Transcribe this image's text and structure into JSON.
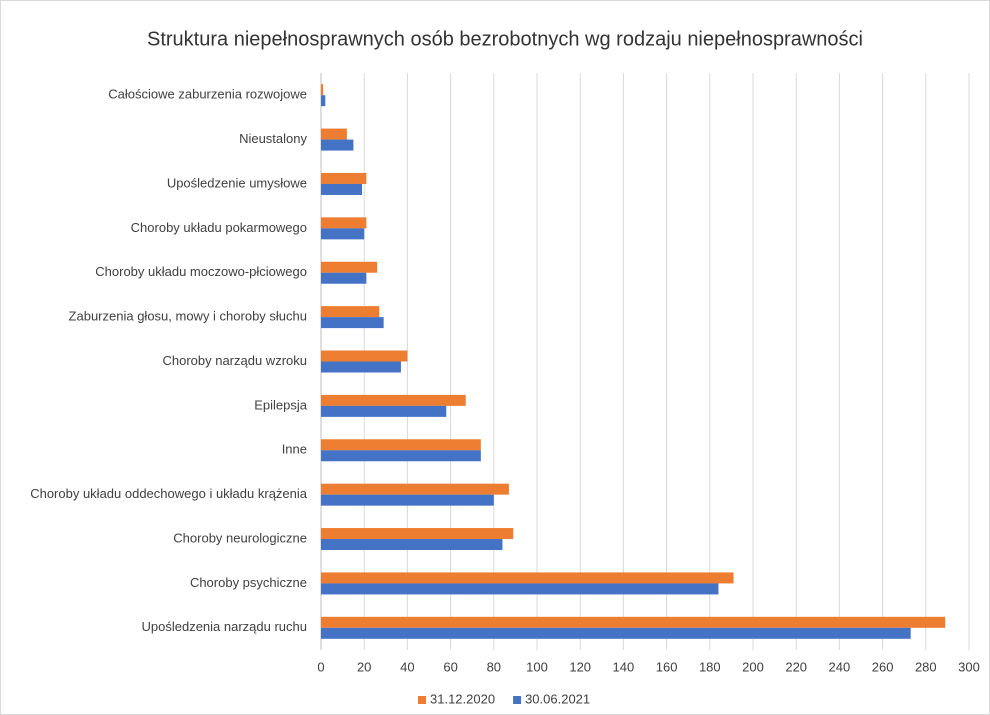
{
  "chart_data": {
    "type": "hbar",
    "title": "Struktura niepełnosprawnych osób bezrobotnych wg rodzaju niepełnosprawności",
    "categories": [
      "Całościowe zaburzenia rozwojowe",
      "Nieustalony",
      "Upośledzenie umysłowe",
      "Choroby układu pokarmowego",
      "Choroby układu moczowo-płciowego",
      "Zaburzenia głosu, mowy i choroby słuchu",
      "Choroby narządu wzroku",
      "Epilepsja",
      "Inne",
      "Choroby układu oddechowego i układu krążenia",
      "Choroby neurologiczne",
      "Choroby psychiczne",
      "Upośledzenia narządu ruchu"
    ],
    "series": [
      {
        "name": "31.12.2020",
        "color": "#ed7d31",
        "values": [
          1,
          12,
          21,
          21,
          26,
          27,
          40,
          67,
          74,
          87,
          89,
          191,
          289
        ]
      },
      {
        "name": "30.06.2021",
        "color": "#4472c4",
        "values": [
          2,
          15,
          19,
          20,
          21,
          29,
          37,
          58,
          74,
          80,
          84,
          184,
          273
        ]
      }
    ],
    "xlim": [
      0,
      300
    ],
    "xticks": [
      0,
      20,
      40,
      60,
      80,
      100,
      120,
      140,
      160,
      180,
      200,
      220,
      240,
      260,
      280,
      300
    ],
    "grid": true,
    "legend": "bottom"
  }
}
